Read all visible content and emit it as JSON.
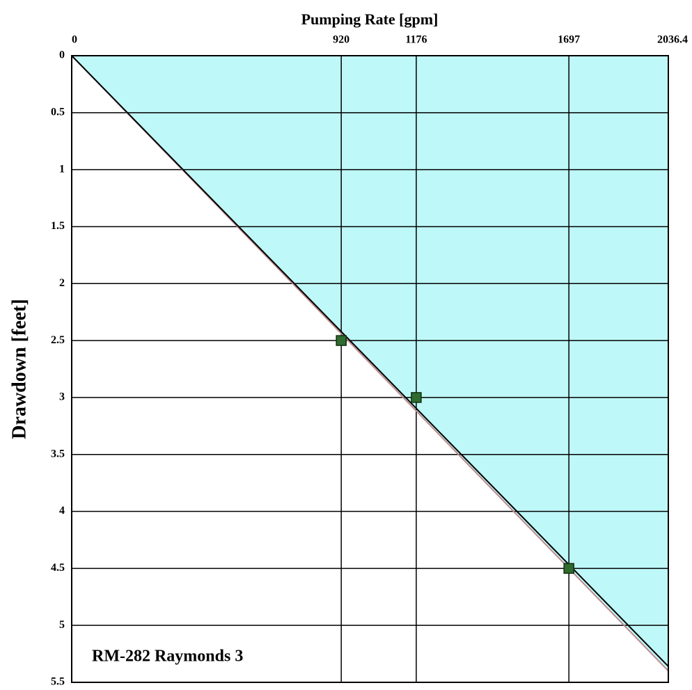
{
  "chart_data": {
    "type": "scatter",
    "title": "Pumping Rate [gpm]",
    "y_label": "Drawdown [feet]",
    "annotation": "RM-282 Raymonds 3",
    "xlim": [
      0,
      2036.4
    ],
    "xticks": [
      0,
      920,
      1176,
      1697,
      2036.4
    ],
    "ylim": [
      0,
      5.5
    ],
    "yticks": [
      0,
      0.5,
      1,
      1.5,
      2,
      2.5,
      3,
      3.5,
      4,
      4.5,
      5,
      5.5
    ],
    "y_inverted": true,
    "x_axis_position": "top",
    "grid": true,
    "area_color": "#bff8f8",
    "series": [
      {
        "color": "#c08a8a",
        "line": true,
        "x": [
          0,
          2036.4
        ],
        "values": [
          0,
          5.4
        ]
      },
      {
        "color": "#000000",
        "line": true,
        "x": [
          0,
          2036.4
        ],
        "values": [
          0,
          5.36
        ]
      },
      {
        "color": "#2f6b2f",
        "line": false,
        "x": [
          920,
          1176,
          1697
        ],
        "values": [
          2.5,
          3,
          4.5
        ]
      }
    ]
  }
}
